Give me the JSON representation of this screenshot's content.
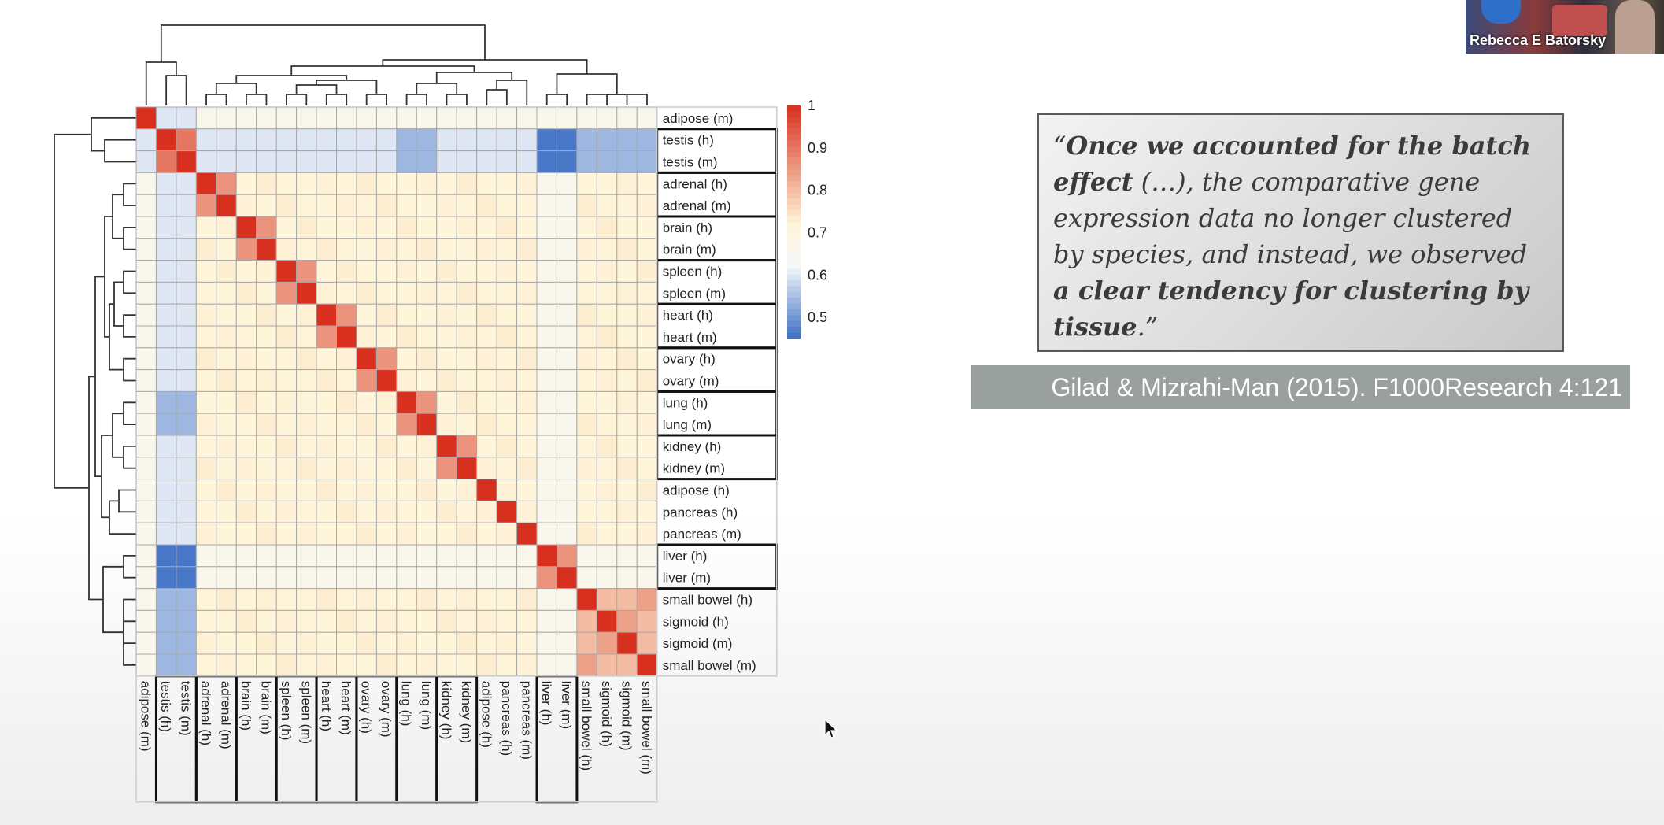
{
  "chart_data": {
    "type": "heatmap",
    "row_labels": [
      "adipose (m)",
      "testis (h)",
      "testis (m)",
      "adrenal (h)",
      "adrenal (m)",
      "brain (h)",
      "brain (m)",
      "spleen (h)",
      "spleen (m)",
      "heart (h)",
      "heart (m)",
      "ovary (h)",
      "ovary (m)",
      "lung (h)",
      "lung (m)",
      "kidney (h)",
      "kidney (m)",
      "adipose (h)",
      "pancreas (h)",
      "pancreas (m)",
      "liver (h)",
      "liver (m)",
      "small bowel (h)",
      "sigmoid (h)",
      "sigmoid (m)",
      "small bowel (m)"
    ],
    "col_labels": [
      "adipose (m)",
      "testis (h)",
      "testis (m)",
      "adrenal (h)",
      "adrenal (m)",
      "brain (h)",
      "brain (m)",
      "spleen (h)",
      "spleen (m)",
      "heart (h)",
      "heart (m)",
      "ovary (h)",
      "ovary (m)",
      "lung (h)",
      "lung (m)",
      "kidney (h)",
      "kidney (m)",
      "adipose (h)",
      "pancreas (h)",
      "pancreas (m)",
      "liver (h)",
      "liver (m)",
      "small bowel (h)",
      "sigmoid (h)",
      "sigmoid (m)",
      "small bowel (m)"
    ],
    "colorbar_ticks": [
      "1",
      "0.9",
      "0.8",
      "0.7",
      "0.6",
      "0.5"
    ],
    "colorbar_range": [
      0.45,
      1
    ],
    "pairs": [
      [
        0,
        0
      ],
      [
        1,
        1
      ],
      [
        2,
        2
      ],
      [
        3,
        3
      ],
      [
        4,
        4
      ],
      [
        5,
        5
      ],
      [
        6,
        6
      ],
      [
        7,
        7
      ],
      [
        8,
        8
      ],
      [
        9,
        9
      ],
      [
        10,
        10
      ],
      [
        11,
        11
      ],
      [
        12,
        12
      ],
      [
        13,
        13
      ],
      [
        14,
        14
      ],
      [
        15,
        15
      ],
      [
        16,
        16
      ],
      [
        17,
        17
      ],
      [
        18,
        18
      ],
      [
        19,
        19
      ],
      [
        20,
        20
      ],
      [
        21,
        21
      ],
      [
        22,
        22
      ],
      [
        23,
        23
      ],
      [
        24,
        24
      ],
      [
        25,
        25
      ]
    ],
    "pair_values": [],
    "row_boxes": [
      [
        1,
        2
      ],
      [
        3,
        4
      ],
      [
        5,
        6
      ],
      [
        7,
        8
      ],
      [
        9,
        10
      ],
      [
        11,
        12
      ],
      [
        13,
        14
      ],
      [
        15,
        16
      ],
      [
        20,
        21
      ]
    ],
    "col_boxes": [
      [
        1,
        2
      ],
      [
        3,
        4
      ],
      [
        5,
        6
      ],
      [
        7,
        8
      ],
      [
        9,
        10
      ],
      [
        11,
        12
      ],
      [
        13,
        14
      ],
      [
        15,
        16
      ],
      [
        20,
        21
      ]
    ]
  },
  "quote": {
    "open": "“",
    "bold1": "Once we accounted for the batch effect",
    "middle": " (…), the comparative gene expression data no longer clustered by species, and instead, we observed ",
    "bold2": "a clear tendency for clustering by tissue",
    "close": ".”"
  },
  "citation": "Gilad & Mizrahi-Man (2015). F1000Research 4:121",
  "video": {
    "name": "Rebecca E Batorsky"
  },
  "colors": {
    "high": "#d7301f",
    "mid": "#fff5d8",
    "low": "#3d6fc4"
  }
}
